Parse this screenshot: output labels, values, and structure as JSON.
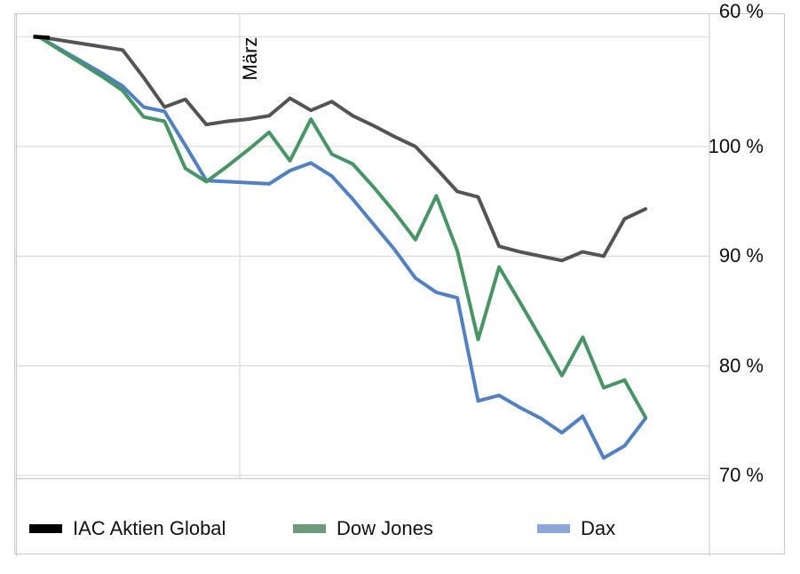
{
  "annotations": {
    "maerz": "März"
  },
  "legend": {
    "items": [
      {
        "label": "IAC Aktien Global",
        "color": "#000000"
      },
      {
        "label": "Dow Jones",
        "color": "#6d9c7b"
      },
      {
        "label": "Dax",
        "color": "#8ba6d8"
      }
    ]
  },
  "chart_data": {
    "type": "line",
    "title": "",
    "x_axis": {
      "points": 30,
      "tick_labels_visible": false,
      "annotation": "März",
      "annotation_point_index": 10
    },
    "y_axis": {
      "side": "right",
      "unit": "%",
      "min": 59.6,
      "max": 100,
      "tick_values": [
        100,
        90,
        80,
        70,
        60
      ],
      "tick_labels": [
        "100 %",
        "90 %",
        "80 %",
        "70 %",
        "60 %"
      ]
    },
    "grid": true,
    "legend_position": "bottom",
    "start_marker_color": "#000000",
    "series": [
      {
        "name": "IAC Aktien Global",
        "line_color": "#545457",
        "legend_color": "#000000",
        "values": [
          100.0,
          99.7,
          99.4,
          99.1,
          98.8,
          96.3,
          93.6,
          94.3,
          92.0,
          92.3,
          92.5,
          92.8,
          94.4,
          93.3,
          94.1,
          92.8,
          91.9,
          90.9,
          90.0,
          88.0,
          85.9,
          85.4,
          80.9,
          80.4,
          80.0,
          79.6,
          80.4,
          80.0,
          83.4,
          84.3
        ]
      },
      {
        "name": "Dow Jones",
        "line_color": "#459663",
        "legend_color": "#6d9c7b",
        "values": [
          100.0,
          98.8,
          97.6,
          96.4,
          95.1,
          92.7,
          92.3,
          88.0,
          86.8,
          88.2,
          89.7,
          91.3,
          88.7,
          92.5,
          89.3,
          88.4,
          86.3,
          84.0,
          81.5,
          85.5,
          80.5,
          72.4,
          79.0,
          75.8,
          72.5,
          69.1,
          72.6,
          68.0,
          68.7,
          65.3
        ]
      },
      {
        "name": "Dax",
        "line_color": "#5181c3",
        "legend_color": "#8ba6d8",
        "values": [
          100.0,
          98.9,
          97.8,
          96.7,
          95.5,
          93.6,
          93.2,
          90.1,
          86.9,
          86.8,
          86.7,
          86.6,
          87.8,
          88.5,
          87.3,
          85.2,
          82.9,
          80.6,
          78.0,
          76.7,
          76.2,
          66.8,
          67.3,
          66.2,
          65.2,
          63.9,
          65.4,
          61.6,
          62.7,
          65.2
        ]
      }
    ]
  }
}
